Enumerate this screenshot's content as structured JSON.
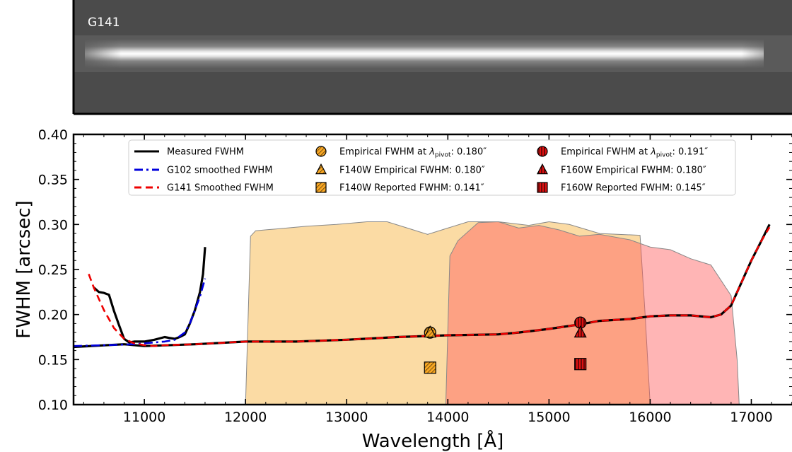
{
  "spectrum_panel": {
    "label": "G141"
  },
  "chart_data": {
    "type": "line",
    "xlabel": "Wavelength [Å]",
    "ylabel": "FWHM [arcsec]",
    "xlim": [
      10300,
      17500
    ],
    "ylim": [
      0.1,
      0.4
    ],
    "xticks": [
      11000,
      12000,
      13000,
      14000,
      15000,
      16000,
      17000
    ],
    "yticks": [
      0.1,
      0.15,
      0.2,
      0.25,
      0.3,
      0.35,
      0.4
    ],
    "xtick_labels": [
      "11000",
      "12000",
      "13000",
      "14000",
      "15000",
      "16000",
      "17000"
    ],
    "ytick_labels": [
      "0.10",
      "0.15",
      "0.20",
      "0.25",
      "0.30",
      "0.35",
      "0.40"
    ],
    "filter_curves": [
      {
        "name": "F140W",
        "color": "#f7bd5a",
        "x": [
          12000,
          12050,
          12100,
          12300,
          12600,
          12900,
          13200,
          13400,
          13600,
          13800,
          14000,
          14200,
          14500,
          14800,
          15000,
          15200,
          15500,
          15900,
          15950,
          16000
        ],
        "y": [
          0.1,
          0.287,
          0.293,
          0.295,
          0.298,
          0.3,
          0.303,
          0.303,
          0.296,
          0.289,
          0.296,
          0.303,
          0.303,
          0.299,
          0.303,
          0.3,
          0.29,
          0.288,
          0.2,
          0.1
        ]
      },
      {
        "name": "F160W",
        "color": "#ff5a5a",
        "x": [
          13980,
          14020,
          14100,
          14300,
          14500,
          14700,
          14900,
          15100,
          15300,
          15500,
          15800,
          16000,
          16200,
          16400,
          16600,
          16800,
          16860,
          16880
        ],
        "y": [
          0.1,
          0.265,
          0.282,
          0.302,
          0.303,
          0.296,
          0.299,
          0.294,
          0.287,
          0.289,
          0.283,
          0.275,
          0.272,
          0.262,
          0.255,
          0.221,
          0.15,
          0.1
        ]
      }
    ],
    "series": [
      {
        "name": "Measured FWHM",
        "color": "#000000",
        "style": "solid",
        "segments": [
          {
            "x": [
              10500,
              10550,
              10600,
              10650,
              10700,
              10750,
              10800,
              10850,
              10900,
              10950,
              11000,
              11100,
              11200,
              11250,
              11300,
              11350,
              11400,
              11450,
              11500,
              11550,
              11580,
              11600
            ],
            "y": [
              0.23,
              0.225,
              0.224,
              0.222,
              0.204,
              0.188,
              0.173,
              0.169,
              0.17,
              0.17,
              0.17,
              0.172,
              0.175,
              0.174,
              0.173,
              0.175,
              0.178,
              0.19,
              0.205,
              0.225,
              0.245,
              0.275
            ]
          },
          {
            "x": [
              10300,
              10800,
              11000,
              11500,
              12000,
              12500,
              13000,
              13500,
              14000,
              14500,
              14700,
              15000,
              15300,
              15500,
              15800,
              16000,
              16200,
              16400,
              16600,
              16700,
              16800,
              16900,
              17000,
              17100,
              17180
            ],
            "y": [
              0.164,
              0.167,
              0.165,
              0.167,
              0.17,
              0.17,
              0.172,
              0.175,
              0.177,
              0.178,
              0.18,
              0.184,
              0.189,
              0.193,
              0.195,
              0.198,
              0.199,
              0.199,
              0.197,
              0.2,
              0.21,
              0.235,
              0.26,
              0.282,
              0.3
            ]
          }
        ]
      },
      {
        "name": "G102 smoothed FWHM",
        "color": "#0000dd",
        "style": "dashdot",
        "segments": [
          {
            "x": [
              10300,
              10600,
              10900,
              11000,
              11100,
              11200,
              11300,
              11400,
              11450,
              11500,
              11550,
              11600
            ],
            "y": [
              0.165,
              0.166,
              0.167,
              0.168,
              0.169,
              0.17,
              0.172,
              0.18,
              0.19,
              0.205,
              0.22,
              0.24
            ]
          }
        ]
      },
      {
        "name": "G141 Smoothed FWHM",
        "color": "#ee0000",
        "style": "dashed",
        "segments": [
          {
            "x": [
              10450,
              10500,
              10600,
              10700,
              10800,
              10900,
              11000,
              11100,
              11200,
              11500,
              12000,
              12500,
              13000,
              13500,
              14000,
              14500,
              14700,
              15000,
              15300,
              15500,
              15800,
              16000,
              16200,
              16400,
              16600,
              16700,
              16800,
              16900,
              17000,
              17100,
              17180
            ],
            "y": [
              0.245,
              0.23,
              0.205,
              0.185,
              0.173,
              0.168,
              0.166,
              0.165,
              0.166,
              0.167,
              0.17,
              0.17,
              0.172,
              0.175,
              0.177,
              0.178,
              0.18,
              0.184,
              0.189,
              0.193,
              0.195,
              0.198,
              0.199,
              0.199,
              0.197,
              0.2,
              0.21,
              0.235,
              0.26,
              0.282,
              0.297
            ]
          }
        ]
      }
    ],
    "markers": [
      {
        "x": 13825,
        "y": 0.18,
        "marker": "circle",
        "color": "#f7a623",
        "hatch": "diag"
      },
      {
        "x": 13825,
        "y": 0.18,
        "marker": "triangle",
        "color": "#f7a623",
        "hatch": "diag"
      },
      {
        "x": 13825,
        "y": 0.141,
        "marker": "square",
        "color": "#f7a623",
        "hatch": "diag"
      },
      {
        "x": 15310,
        "y": 0.191,
        "marker": "circle",
        "color": "#dd1111",
        "hatch": "vert"
      },
      {
        "x": 15310,
        "y": 0.18,
        "marker": "triangle",
        "color": "#dd1111",
        "hatch": "vert"
      },
      {
        "x": 15310,
        "y": 0.145,
        "marker": "square",
        "color": "#dd1111",
        "hatch": "vert"
      }
    ],
    "legend": {
      "placement": "top",
      "col1": [
        {
          "label": "Measured FWHM",
          "kind": "line",
          "color": "#000000",
          "style": "solid"
        },
        {
          "label": "G102 smoothed FWHM",
          "kind": "line",
          "color": "#0000dd",
          "style": "dashdot"
        },
        {
          "label": "G141 Smoothed FWHM",
          "kind": "line",
          "color": "#ee0000",
          "style": "dashed"
        }
      ],
      "col2": [
        {
          "label_pre": "Empirical FWHM at ",
          "lambda": "λ",
          "sub": "pivot",
          "label_post": ": 0.180″",
          "kind": "circle",
          "color": "#f7a623",
          "hatch": "diag"
        },
        {
          "label": "F140W Empirical FWHM: 0.180″",
          "kind": "triangle",
          "color": "#f7a623",
          "hatch": "diag"
        },
        {
          "label": "F140W Reported FWHM: 0.141″",
          "kind": "square",
          "color": "#f7a623",
          "hatch": "diag"
        }
      ],
      "col3": [
        {
          "label_pre": "Empirical FWHM at ",
          "lambda": "λ",
          "sub": "pivot",
          "label_post": ": 0.191″",
          "kind": "circle",
          "color": "#dd1111",
          "hatch": "vert"
        },
        {
          "label": "F160W Empirical FWHM: 0.180″",
          "kind": "triangle",
          "color": "#dd1111",
          "hatch": "vert"
        },
        {
          "label": "F160W Reported FWHM: 0.145″",
          "kind": "square",
          "color": "#dd1111",
          "hatch": "vert"
        }
      ]
    }
  }
}
